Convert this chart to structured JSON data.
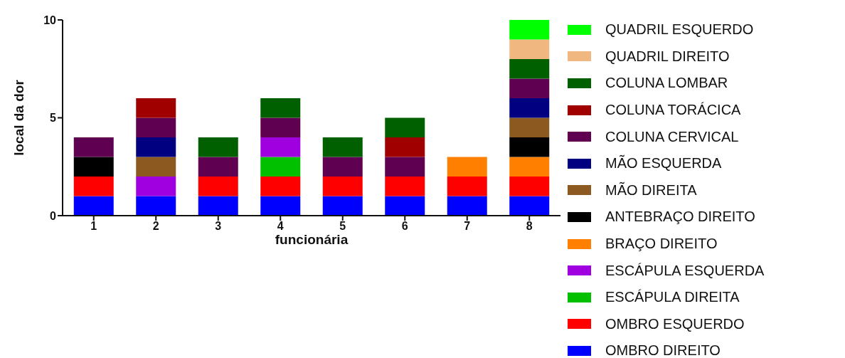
{
  "chart_data": {
    "type": "bar",
    "stacked": true,
    "xlabel": "funcionária",
    "ylabel": "local da dor",
    "categories": [
      "1",
      "2",
      "3",
      "4",
      "5",
      "6",
      "7",
      "8"
    ],
    "ylim": [
      0,
      10
    ],
    "yticks": [
      0,
      5,
      10
    ],
    "grid": false,
    "legend": "right",
    "series": [
      {
        "name": "OMBRO DIREITO",
        "color": "#0000ff",
        "values": [
          1,
          1,
          1,
          1,
          1,
          1,
          1,
          1
        ]
      },
      {
        "name": "OMBRO ESQUERDO",
        "color": "#ff0000",
        "values": [
          1,
          0,
          1,
          1,
          1,
          1,
          1,
          1
        ]
      },
      {
        "name": "ESCÁPULA DIREITA",
        "color": "#00c000",
        "values": [
          0,
          0,
          0,
          1,
          0,
          0,
          0,
          0
        ]
      },
      {
        "name": "ESCÁPULA ESQUERDA",
        "color": "#a000e0",
        "values": [
          0,
          1,
          0,
          1,
          0,
          0,
          0,
          0
        ]
      },
      {
        "name": "BRAÇO DIREITO",
        "color": "#ff8000",
        "values": [
          0,
          0,
          0,
          0,
          0,
          0,
          1,
          1
        ]
      },
      {
        "name": "ANTEBRAÇO DIREITO",
        "color": "#000000",
        "values": [
          1,
          0,
          0,
          0,
          0,
          0,
          0,
          1
        ]
      },
      {
        "name": "MÃO DIREITA",
        "color": "#8c5a20",
        "values": [
          0,
          1,
          0,
          0,
          0,
          0,
          0,
          1
        ]
      },
      {
        "name": "MÃO ESQUERDA",
        "color": "#000080",
        "values": [
          0,
          1,
          0,
          0,
          0,
          0,
          0,
          1
        ]
      },
      {
        "name": "COLUNA CERVICAL",
        "color": "#600050",
        "values": [
          1,
          1,
          1,
          1,
          1,
          1,
          0,
          1
        ]
      },
      {
        "name": "COLUNA TORÁCICA",
        "color": "#a00000",
        "values": [
          0,
          1,
          0,
          0,
          0,
          1,
          0,
          0
        ]
      },
      {
        "name": "COLUNA LOMBAR",
        "color": "#006000",
        "values": [
          0,
          0,
          1,
          1,
          1,
          1,
          0,
          1
        ]
      },
      {
        "name": "QUADRIL DIREITO",
        "color": "#f0b880",
        "values": [
          0,
          0,
          0,
          0,
          0,
          0,
          0,
          1
        ]
      },
      {
        "name": "QUADRIL ESQUERDO",
        "color": "#00ff00",
        "values": [
          0,
          0,
          0,
          0,
          0,
          0,
          0,
          1
        ]
      }
    ]
  }
}
